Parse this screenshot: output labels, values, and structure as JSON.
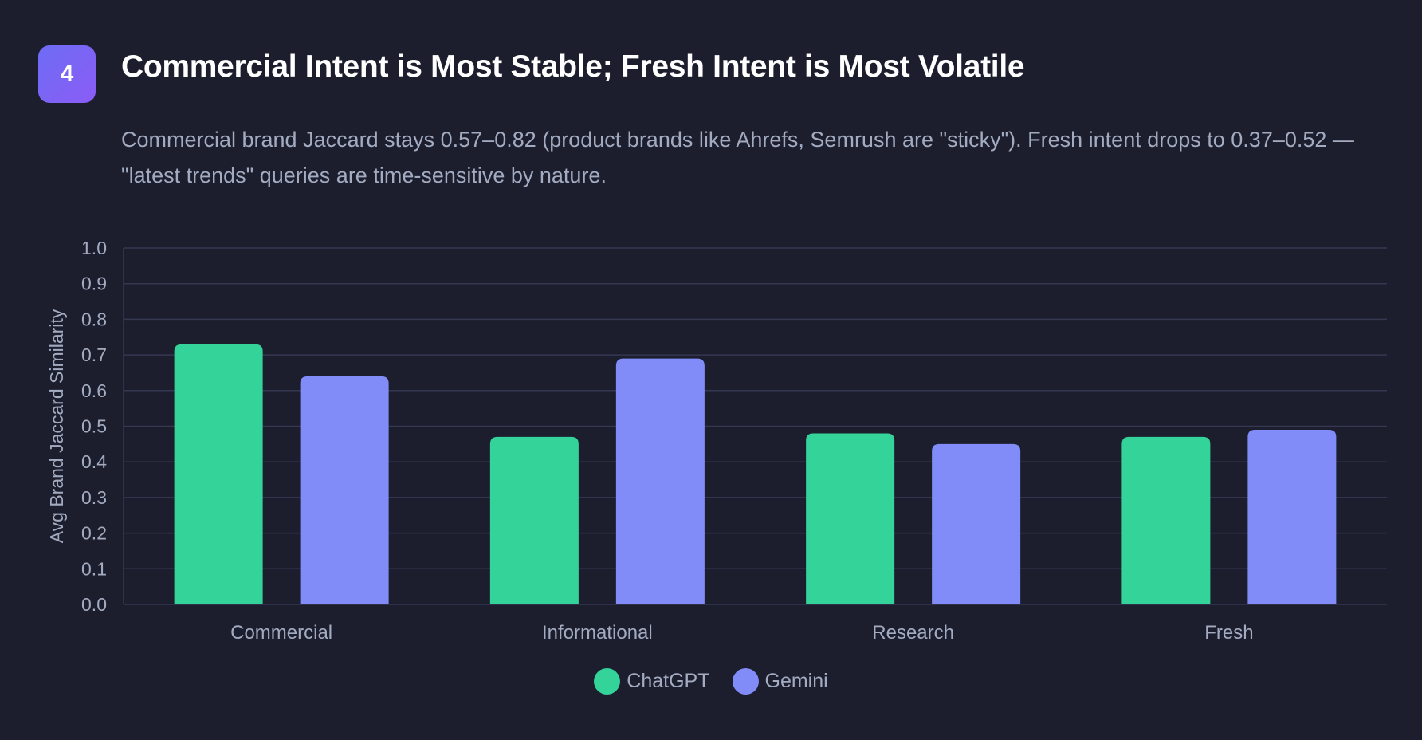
{
  "header": {
    "badge_number": "4",
    "title": "Commercial Intent is Most Stable; Fresh Intent is Most Volatile",
    "subtitle": "Commercial brand Jaccard stays 0.57–0.82 (product brands like Ahrefs, Semrush are \"sticky\"). Fresh intent drops to 0.37–0.52 — \"latest trends\" queries are time-sensitive by nature."
  },
  "colors": {
    "chatgpt": "#34d399",
    "gemini": "#818cf8",
    "grid": "#343850",
    "axis_text": "#a3abc0",
    "badge": "#7c6cf5"
  },
  "chart_data": {
    "type": "bar",
    "title": "Commercial Intent is Most Stable; Fresh Intent is Most Volatile",
    "xlabel": "",
    "ylabel": "Avg Brand Jaccard Similarity",
    "ylim": [
      0,
      1.0
    ],
    "yticks": [
      "0.0",
      "0.1",
      "0.2",
      "0.3",
      "0.4",
      "0.5",
      "0.6",
      "0.7",
      "0.8",
      "0.9",
      "1.0"
    ],
    "grid": true,
    "legend_position": "bottom-center",
    "categories": [
      "Commercial",
      "Informational",
      "Research",
      "Fresh"
    ],
    "series": [
      {
        "name": "ChatGPT",
        "color": "#34d399",
        "values": [
          0.73,
          0.47,
          0.48,
          0.47
        ]
      },
      {
        "name": "Gemini",
        "color": "#818cf8",
        "values": [
          0.64,
          0.69,
          0.45,
          0.49
        ]
      }
    ]
  }
}
